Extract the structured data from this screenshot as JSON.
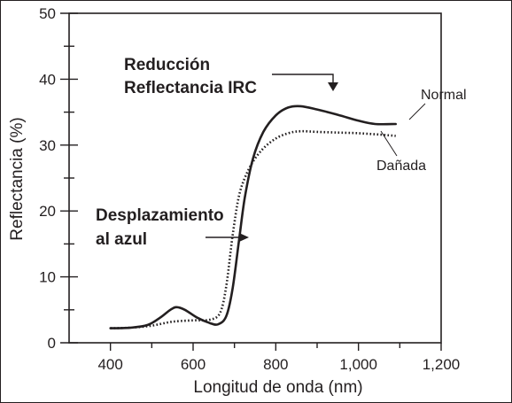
{
  "chart_data": {
    "type": "line",
    "title": "",
    "xlabel": "Longitud de onda (nm)",
    "ylabel": "Reflectancia (%)",
    "xlim": [
      300,
      1200
    ],
    "ylim": [
      0,
      50
    ],
    "x_ticks": [
      400,
      600,
      800,
      1000,
      1200
    ],
    "x_tick_labels": [
      "400",
      "600",
      "800",
      "1,000",
      "1,200"
    ],
    "y_ticks": [
      0,
      10,
      20,
      30,
      40,
      50
    ],
    "y_tick_labels": [
      "0",
      "10",
      "20",
      "30",
      "40",
      "50"
    ],
    "grid": false,
    "series": [
      {
        "name": "Normal",
        "style": "solid",
        "color": "#231f20",
        "x": [
          400,
          450,
          490,
          520,
          545,
          560,
          580,
          610,
          640,
          660,
          680,
          695,
          710,
          725,
          745,
          770,
          800,
          830,
          860,
          900,
          950,
          1000,
          1040,
          1090
        ],
        "y": [
          2.2,
          2.3,
          2.7,
          3.8,
          5.0,
          5.4,
          5.0,
          3.8,
          3.0,
          2.8,
          4.0,
          8.0,
          15.0,
          22.0,
          28.0,
          32.0,
          34.5,
          35.7,
          35.9,
          35.4,
          34.6,
          33.7,
          33.2,
          33.2
        ]
      },
      {
        "name": "Dañada",
        "style": "dotted",
        "color": "#231f20",
        "x": [
          400,
          450,
          500,
          550,
          600,
          640,
          665,
          680,
          695,
          710,
          725,
          745,
          770,
          800,
          830,
          860,
          900,
          950,
          1000,
          1050,
          1090
        ],
        "y": [
          2.2,
          2.3,
          2.6,
          3.2,
          3.4,
          3.5,
          4.5,
          8.5,
          16.0,
          22.0,
          25.0,
          27.5,
          29.5,
          31.0,
          31.8,
          32.1,
          32.0,
          31.9,
          31.8,
          31.6,
          31.4
        ]
      }
    ],
    "annotations": {
      "nir_reduction": [
        "Reducción",
        "Reflectancia IRC"
      ],
      "blue_shift": [
        "Desplazamiento",
        "al azul"
      ]
    }
  }
}
